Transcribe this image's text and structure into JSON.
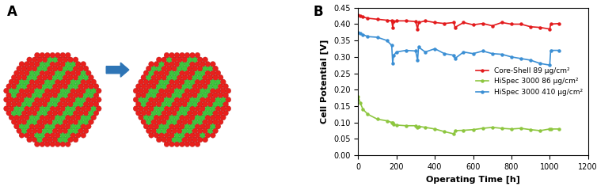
{
  "panel_labels": [
    "A",
    "B"
  ],
  "chart_data": {
    "type": "line",
    "x_label": "Operating Time [h]",
    "y_label": "Cell Potential [V]",
    "x": [
      0,
      10,
      25,
      50,
      100,
      150,
      175,
      180,
      185,
      200,
      250,
      300,
      310,
      315,
      350,
      400,
      450,
      500,
      505,
      550,
      600,
      650,
      700,
      750,
      800,
      850,
      900,
      950,
      1000,
      1005,
      1050
    ],
    "series": [
      {
        "name": "Core-Shell 89 µg/cm²",
        "color": "#e31a1c",
        "marker": "o",
        "line_style": "solid",
        "values": [
          0.428,
          0.425,
          0.422,
          0.418,
          0.415,
          0.412,
          0.41,
          0.39,
          0.408,
          0.41,
          0.41,
          0.408,
          0.385,
          0.405,
          0.41,
          0.405,
          0.402,
          0.405,
          0.39,
          0.405,
          0.398,
          0.402,
          0.395,
          0.405,
          0.4,
          0.4,
          0.392,
          0.39,
          0.385,
          0.4,
          0.402
        ]
      },
      {
        "name": "HiSpec 3000 86 µg/cm²",
        "color": "#8dc63f",
        "marker": "o",
        "line_style": "solid",
        "values": [
          0.18,
          0.16,
          0.14,
          0.125,
          0.11,
          0.105,
          0.1,
          0.098,
          0.095,
          0.092,
          0.09,
          0.09,
          0.085,
          0.088,
          0.085,
          0.08,
          0.072,
          0.065,
          0.075,
          0.076,
          0.078,
          0.082,
          0.085,
          0.082,
          0.08,
          0.082,
          0.078,
          0.075,
          0.08,
          0.08,
          0.08
        ]
      },
      {
        "name": "HiSpec 3000 410 µg/cm²",
        "color": "#3b8fd4",
        "marker": "o",
        "line_style": "solid",
        "values": [
          0.375,
          0.372,
          0.368,
          0.362,
          0.36,
          0.35,
          0.335,
          0.28,
          0.305,
          0.315,
          0.32,
          0.318,
          0.29,
          0.33,
          0.315,
          0.325,
          0.31,
          0.305,
          0.295,
          0.315,
          0.31,
          0.318,
          0.31,
          0.308,
          0.3,
          0.295,
          0.29,
          0.28,
          0.275,
          0.32,
          0.32
        ]
      }
    ],
    "xlim": [
      0,
      1200
    ],
    "xticks": [
      0,
      200,
      400,
      600,
      800,
      1000,
      1200
    ],
    "ylim": [
      0,
      0.45
    ],
    "yticks": [
      {
        "value": 0,
        "label": "0.00"
      },
      {
        "value": 0.05,
        "label": "0.05"
      },
      {
        "value": 0.1,
        "label": "0.10"
      },
      {
        "value": 0.15,
        "label": "0.15"
      },
      {
        "value": 0.2,
        "label": "0.20"
      },
      {
        "value": 0.25,
        "label": "0.25"
      },
      {
        "value": 0.3,
        "label": "0.30"
      },
      {
        "value": 0.35,
        "label": "0.35"
      },
      {
        "value": 0.4,
        "label": "0.40"
      },
      {
        "value": 0.45,
        "label": "0.45"
      }
    ],
    "grid": false,
    "legend": "center right"
  }
}
